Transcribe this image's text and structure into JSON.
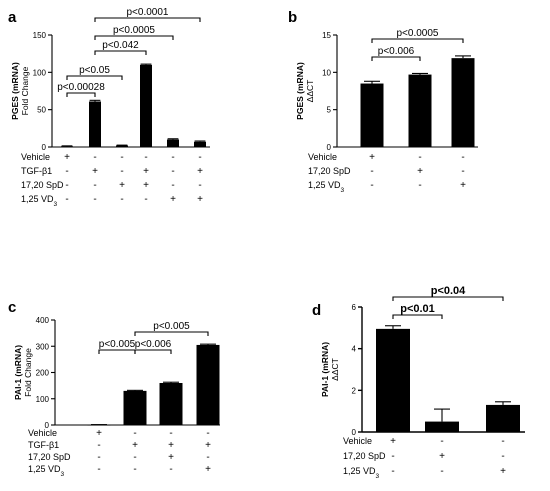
{
  "chart_data": [
    {
      "panel": "a",
      "type": "bar",
      "ylabel": "PGES (mRNA)",
      "ylabel2": "Fold Change",
      "ylim": [
        0,
        150
      ],
      "yticks": [
        "0",
        "50",
        "100",
        "150"
      ],
      "values": [
        1,
        61,
        2,
        110,
        10,
        7
      ],
      "errors": [
        0.5,
        1.5,
        0.5,
        1.0,
        1.0,
        1.0
      ],
      "comparisons": [
        {
          "from": 0,
          "to": 1,
          "label": "p<0.00028"
        },
        {
          "from": 0,
          "to": 2,
          "label": "p<0.05"
        },
        {
          "from": 1,
          "to": 3,
          "label": "p<0.042"
        },
        {
          "from": 1,
          "to": 4,
          "label": "p<0.0005"
        },
        {
          "from": 1,
          "to": 5,
          "label": "p<0.0001"
        }
      ],
      "treatments": [
        {
          "label": "Vehicle",
          "marks": [
            "+",
            "-",
            "-",
            "-",
            "-",
            "-"
          ]
        },
        {
          "label": "TGF-β1",
          "marks": [
            "-",
            "+",
            "-",
            "+",
            "-",
            "+"
          ]
        },
        {
          "label": "17,20 SpD",
          "marks": [
            "-",
            "-",
            "+",
            "+",
            "-",
            "-"
          ]
        },
        {
          "label": "1,25 VD",
          "sub": "3",
          "marks": [
            "-",
            "-",
            "-",
            "-",
            "+",
            "+"
          ]
        }
      ]
    },
    {
      "panel": "b",
      "type": "bar",
      "ylabel": "PGES (mRNA)",
      "ylabel2": "ΔΔCT",
      "ylim": [
        0,
        15
      ],
      "yticks": [
        "0",
        "5",
        "10",
        "15"
      ],
      "values": [
        8.5,
        9.7,
        11.9
      ],
      "errors": [
        0.3,
        0.15,
        0.3
      ],
      "comparisons": [
        {
          "from": 0,
          "to": 1,
          "label": "p<0.006"
        },
        {
          "from": 0,
          "to": 2,
          "label": "p<0.0005"
        }
      ],
      "treatments": [
        {
          "label": "Vehicle",
          "marks": [
            "+",
            "-",
            "-"
          ]
        },
        {
          "label": "17,20 SpD",
          "marks": [
            "-",
            "+",
            "-"
          ]
        },
        {
          "label": "1,25 VD",
          "sub": "3",
          "marks": [
            "-",
            "-",
            "+"
          ]
        }
      ]
    },
    {
      "panel": "c",
      "type": "bar",
      "ylabel": "PAI-1 (mRNA)",
      "ylabel2": "Fold Change",
      "ylim": [
        0,
        400
      ],
      "yticks": [
        "0",
        "100",
        "200",
        "300",
        "400"
      ],
      "values": [
        1,
        130,
        160,
        305
      ],
      "errors": [
        0.5,
        2,
        3,
        3
      ],
      "comparisons": [
        {
          "from": 0,
          "to": 1,
          "label": "p<0.005"
        },
        {
          "from": 1,
          "to": 2,
          "label": "p<0.006"
        },
        {
          "from": 1,
          "to": 3,
          "label": "p<0.005"
        }
      ],
      "treatments": [
        {
          "label": "Vehicle",
          "marks": [
            "+",
            "-",
            "-",
            "-"
          ]
        },
        {
          "label": "TGF-β1",
          "marks": [
            "-",
            "+",
            "+",
            "+"
          ]
        },
        {
          "label": "17,20 SpD",
          "marks": [
            "-",
            "-",
            "+",
            "-"
          ]
        },
        {
          "label": "1,25 VD",
          "sub": "3",
          "marks": [
            "-",
            "-",
            "-",
            "+"
          ]
        }
      ]
    },
    {
      "panel": "d",
      "type": "bar",
      "ylabel": "PAI-1 (mRNA)",
      "ylabel2": "ΔΔCT",
      "ylim": [
        0,
        6
      ],
      "yticks": [
        "0",
        "2",
        "4",
        "6"
      ],
      "values": [
        4.95,
        0.5,
        1.3
      ],
      "errors": [
        0.15,
        0.6,
        0.15
      ],
      "comparisons": [
        {
          "from": 0,
          "to": 1,
          "label": "p<0.01"
        },
        {
          "from": 0,
          "to": 2,
          "label": "p<0.04"
        }
      ],
      "treatments": [
        {
          "label": "Vehicle",
          "marks": [
            "+",
            "-",
            "-"
          ]
        },
        {
          "label": "17,20 SpD",
          "marks": [
            "-",
            "+",
            "-"
          ]
        },
        {
          "label": "1,25 VD",
          "sub": "3",
          "marks": [
            "-",
            "-",
            "+"
          ]
        }
      ]
    }
  ]
}
